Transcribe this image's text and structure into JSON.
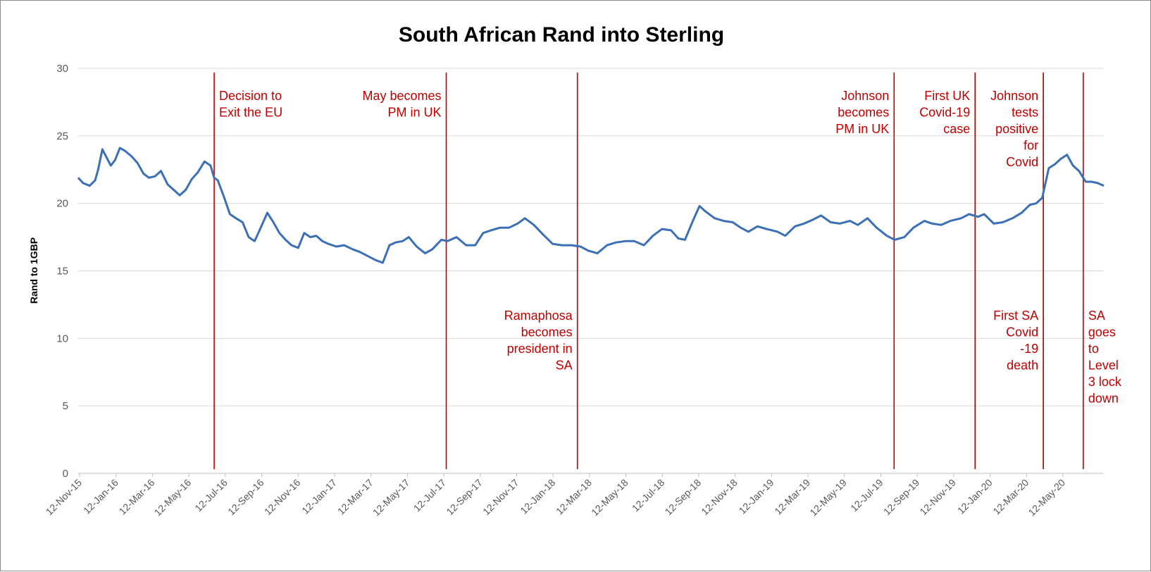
{
  "chart_data": {
    "type": "line",
    "title": "South African Rand into Sterling",
    "xlabel": "",
    "ylabel": "Rand to 1GBP",
    "ylim": [
      0,
      30
    ],
    "yticks": [
      0,
      5,
      10,
      15,
      20,
      25,
      30
    ],
    "grid": true,
    "legend": "none",
    "x_tick_labels": [
      "12-Nov-15",
      "12-Jan-16",
      "12-Mar-16",
      "12-May-16",
      "12-Jul-16",
      "12-Sep-16",
      "12-Nov-16",
      "12-Jan-17",
      "12-Mar-17",
      "12-May-17",
      "12-Jul-17",
      "12-Sep-17",
      "12-Nov-17",
      "12-Jan-18",
      "12-Mar-18",
      "12-May-18",
      "12-Jul-18",
      "12-Sep-18",
      "12-Nov-18",
      "12-Jan-19",
      "12-Mar-19",
      "12-May-19",
      "12-Jul-19",
      "12-Sep-19",
      "12-Nov-19",
      "12-Jan-20",
      "12-Mar-20",
      "12-May-20"
    ],
    "colors": {
      "series": "#3b6fb6",
      "events": "#c00000",
      "grid": "#d9d9d9"
    },
    "series": [
      {
        "x": [
          "2015-11-12",
          "2015-11-20",
          "2015-12-01",
          "2015-12-10",
          "2015-12-15",
          "2015-12-22",
          "2016-01-05",
          "2016-01-12",
          "2016-01-20",
          "2016-01-28",
          "2016-02-08",
          "2016-02-18",
          "2016-02-28",
          "2016-03-08",
          "2016-03-18",
          "2016-03-28",
          "2016-04-08",
          "2016-04-18",
          "2016-04-28",
          "2016-05-08",
          "2016-05-18",
          "2016-05-28",
          "2016-06-08",
          "2016-06-18",
          "2016-06-24",
          "2016-06-30",
          "2016-07-10",
          "2016-07-20",
          "2016-07-30",
          "2016-08-10",
          "2016-08-20",
          "2016-08-30",
          "2016-09-10",
          "2016-09-20",
          "2016-09-30",
          "2016-10-10",
          "2016-10-20",
          "2016-10-30",
          "2016-11-10",
          "2016-11-20",
          "2016-11-30",
          "2016-12-10",
          "2016-12-20",
          "2016-12-30",
          "2017-01-12",
          "2017-01-25",
          "2017-02-08",
          "2017-02-20",
          "2017-03-05",
          "2017-03-18",
          "2017-03-30",
          "2017-04-10",
          "2017-04-20",
          "2017-05-02",
          "2017-05-12",
          "2017-05-25",
          "2017-06-08",
          "2017-06-20",
          "2017-07-05",
          "2017-07-15",
          "2017-07-30",
          "2017-08-15",
          "2017-08-30",
          "2017-09-12",
          "2017-09-25",
          "2017-10-10",
          "2017-10-25",
          "2017-11-08",
          "2017-11-20",
          "2017-12-05",
          "2017-12-20",
          "2018-01-05",
          "2018-01-20",
          "2018-02-05",
          "2018-02-20",
          "2018-03-05",
          "2018-03-20",
          "2018-04-05",
          "2018-04-20",
          "2018-05-05",
          "2018-05-20",
          "2018-06-05",
          "2018-06-20",
          "2018-07-05",
          "2018-07-20",
          "2018-08-01",
          "2018-08-12",
          "2018-08-25",
          "2018-09-05",
          "2018-09-15",
          "2018-09-30",
          "2018-10-15",
          "2018-10-30",
          "2018-11-12",
          "2018-11-25",
          "2018-12-10",
          "2018-12-25",
          "2019-01-12",
          "2019-01-25",
          "2019-02-10",
          "2019-02-25",
          "2019-03-12",
          "2019-03-25",
          "2019-04-10",
          "2019-04-25",
          "2019-05-12",
          "2019-05-25",
          "2019-06-10",
          "2019-06-25",
          "2019-07-12",
          "2019-07-25",
          "2019-08-10",
          "2019-08-25",
          "2019-09-12",
          "2019-09-25",
          "2019-10-10",
          "2019-10-25",
          "2019-11-12",
          "2019-11-25",
          "2019-12-10",
          "2019-12-20",
          "2020-01-05",
          "2020-01-20",
          "2020-02-05",
          "2020-02-20",
          "2020-03-05",
          "2020-03-15",
          "2020-03-25",
          "2020-04-05",
          "2020-04-15",
          "2020-04-25",
          "2020-05-05",
          "2020-05-15",
          "2020-05-25",
          "2020-06-05",
          "2020-06-15",
          "2020-06-25",
          "2020-07-05"
        ],
        "values": [
          21.9,
          21.5,
          21.3,
          21.7,
          22.5,
          24.0,
          22.8,
          23.2,
          24.1,
          23.9,
          23.5,
          23.0,
          22.2,
          21.9,
          22.0,
          22.4,
          21.4,
          21.0,
          20.6,
          21.0,
          21.8,
          22.3,
          23.1,
          22.8,
          21.9,
          21.7,
          20.5,
          19.2,
          18.9,
          18.6,
          17.5,
          17.2,
          18.3,
          19.3,
          18.6,
          17.8,
          17.3,
          16.9,
          16.7,
          17.8,
          17.5,
          17.6,
          17.2,
          17.0,
          16.8,
          16.9,
          16.6,
          16.4,
          16.1,
          15.8,
          15.6,
          16.9,
          17.1,
          17.2,
          17.5,
          16.8,
          16.3,
          16.6,
          17.3,
          17.2,
          17.5,
          16.9,
          16.9,
          17.8,
          18.0,
          18.2,
          18.2,
          18.5,
          18.9,
          18.4,
          17.7,
          17.0,
          16.9,
          16.9,
          16.8,
          16.5,
          16.3,
          16.9,
          17.1,
          17.2,
          17.2,
          16.9,
          17.6,
          18.1,
          18.0,
          17.4,
          17.3,
          18.7,
          19.8,
          19.4,
          18.9,
          18.7,
          18.6,
          18.2,
          17.9,
          18.3,
          18.1,
          17.9,
          17.6,
          18.3,
          18.5,
          18.8,
          19.1,
          18.6,
          18.5,
          18.7,
          18.4,
          18.9,
          18.2,
          17.6,
          17.3,
          17.5,
          18.2,
          18.7,
          18.5,
          18.4,
          18.7,
          18.9,
          19.2,
          19.0,
          19.2,
          18.5,
          18.6,
          18.9,
          19.3,
          19.9,
          20.0,
          20.4,
          22.6,
          22.9,
          23.3,
          23.6,
          22.8,
          22.4,
          21.6,
          21.6,
          21.5,
          21.3
        ]
      }
    ],
    "events": [
      {
        "date": "2016-06-24",
        "label": [
          "Decision to",
          "Exit the EU"
        ],
        "position": "top",
        "align": "left"
      },
      {
        "date": "2017-07-13",
        "label": [
          "May becomes",
          "PM in UK"
        ],
        "position": "top",
        "align": "right"
      },
      {
        "date": "2018-02-15",
        "label": [
          "Ramaphosa",
          "becomes",
          "president in",
          "SA"
        ],
        "position": "bottom",
        "align": "right"
      },
      {
        "date": "2019-07-24",
        "label": [
          "Johnson",
          "becomes",
          "PM in UK"
        ],
        "position": "top",
        "align": "right"
      },
      {
        "date": "2019-12-05",
        "label": [
          "First UK",
          "Covid-19",
          "case"
        ],
        "position": "top",
        "align": "right"
      },
      {
        "date": "2020-03-27",
        "label": [
          "First SA",
          "Covid",
          "-19",
          "death"
        ],
        "position": "bottom",
        "align": "right"
      },
      {
        "date": "2020-03-27",
        "label": [
          "Johnson",
          "tests",
          "positive",
          "for",
          "Covid"
        ],
        "position": "top",
        "align": "right"
      },
      {
        "date": "2020-06-01",
        "label": [
          "SA",
          "goes",
          "to",
          "Level",
          "3 lock",
          "down"
        ],
        "position": "bottom",
        "align": "left"
      }
    ]
  }
}
